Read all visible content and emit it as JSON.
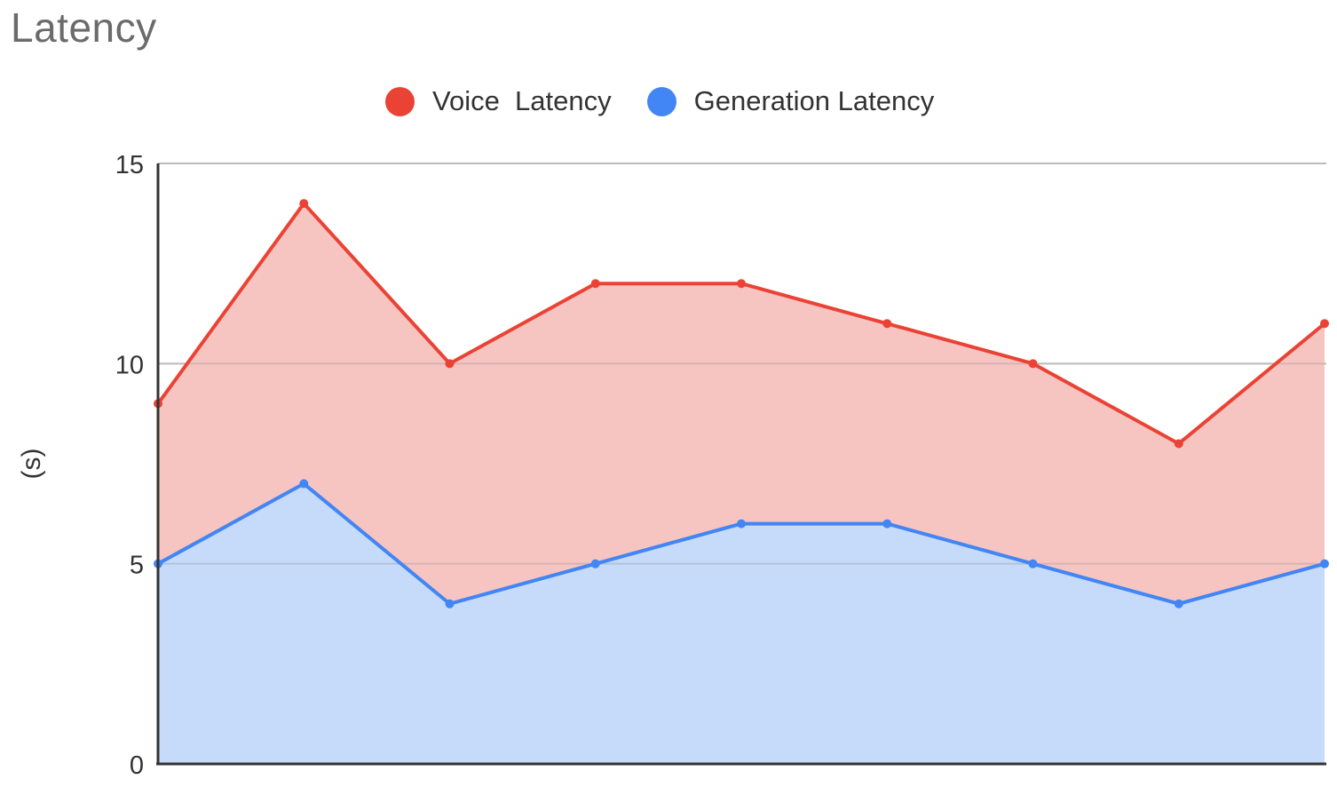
{
  "chart_data": {
    "type": "area",
    "title": "Latency",
    "ylabel": "(s)",
    "xlabel": "",
    "ylim": [
      0,
      15
    ],
    "yticks": [
      0,
      5,
      10,
      15
    ],
    "grid": true,
    "legend_position": "top-center",
    "x": [
      1,
      2,
      3,
      4,
      5,
      6,
      7,
      8,
      9
    ],
    "series": [
      {
        "name": "Voice  Latency",
        "color": "#ea4335",
        "fill": "#f7c5c1",
        "values": [
          9,
          14,
          10,
          12,
          12,
          11,
          10,
          8,
          11
        ]
      },
      {
        "name": "Generation Latency",
        "color": "#4285f4",
        "fill": "#c6dafa",
        "values": [
          5,
          7,
          4,
          5,
          6,
          6,
          5,
          4,
          5
        ]
      }
    ]
  }
}
